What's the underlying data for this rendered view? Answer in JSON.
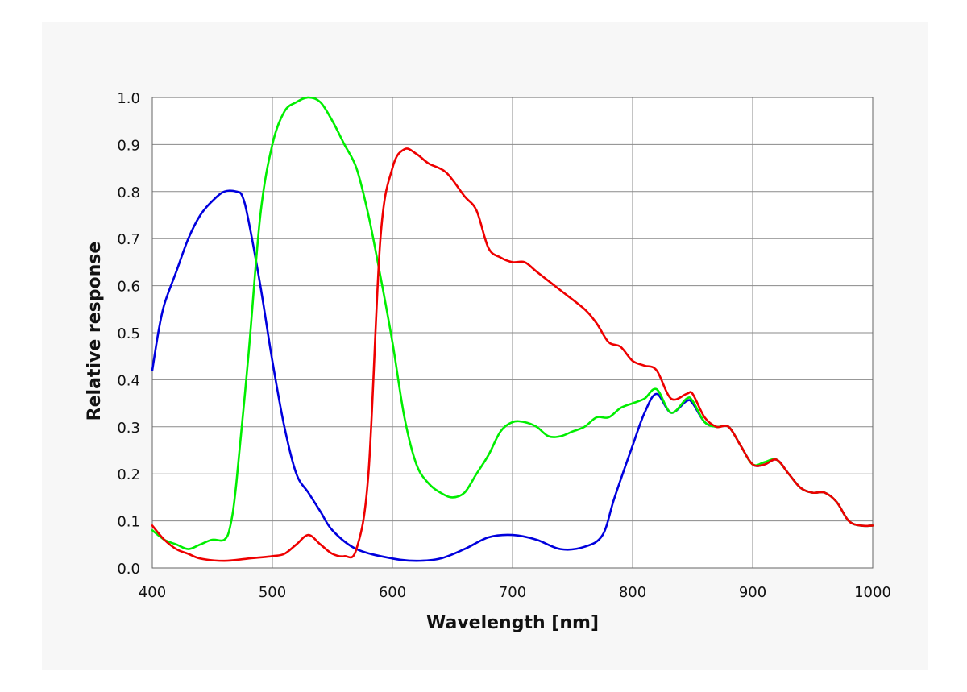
{
  "chart_data": {
    "type": "line",
    "xlabel": "Wavelength [nm]",
    "ylabel": "Relative response",
    "xlim": [
      400,
      1000
    ],
    "ylim": [
      0,
      1
    ],
    "x_ticks": [
      400,
      500,
      600,
      700,
      800,
      900,
      1000
    ],
    "x_tick_labels": [
      "400",
      "500",
      "600",
      "700",
      "800",
      "900",
      "1000"
    ],
    "y_ticks": [
      0,
      0.1,
      0.2,
      0.3,
      0.4,
      0.5,
      0.6,
      0.7,
      0.8,
      0.9,
      1.0
    ],
    "y_tick_labels": [
      "0.0",
      "0.1",
      "0.2",
      "0.3",
      "0.4",
      "0.5",
      "0.6",
      "0.7",
      "0.8",
      "0.9",
      "1.0"
    ],
    "grid": true,
    "series": [
      {
        "color": "#0000dd",
        "points": [
          [
            400,
            0.42
          ],
          [
            405,
            0.5
          ],
          [
            410,
            0.56
          ],
          [
            420,
            0.63
          ],
          [
            430,
            0.7
          ],
          [
            440,
            0.75
          ],
          [
            450,
            0.78
          ],
          [
            460,
            0.8
          ],
          [
            470,
            0.8
          ],
          [
            475,
            0.79
          ],
          [
            480,
            0.74
          ],
          [
            490,
            0.6
          ],
          [
            500,
            0.44
          ],
          [
            510,
            0.3
          ],
          [
            520,
            0.2
          ],
          [
            530,
            0.16
          ],
          [
            540,
            0.12
          ],
          [
            550,
            0.08
          ],
          [
            570,
            0.04
          ],
          [
            600,
            0.02
          ],
          [
            620,
            0.015
          ],
          [
            640,
            0.02
          ],
          [
            660,
            0.04
          ],
          [
            680,
            0.065
          ],
          [
            700,
            0.07
          ],
          [
            720,
            0.06
          ],
          [
            740,
            0.04
          ],
          [
            760,
            0.045
          ],
          [
            775,
            0.07
          ],
          [
            785,
            0.15
          ],
          [
            800,
            0.26
          ],
          [
            810,
            0.33
          ],
          [
            820,
            0.37
          ],
          [
            832,
            0.33
          ],
          [
            845,
            0.355
          ],
          [
            850,
            0.35
          ],
          [
            860,
            0.31
          ],
          [
            870,
            0.3
          ],
          [
            880,
            0.3
          ],
          [
            890,
            0.26
          ],
          [
            900,
            0.22
          ],
          [
            910,
            0.22
          ],
          [
            920,
            0.23
          ],
          [
            930,
            0.2
          ],
          [
            940,
            0.17
          ],
          [
            950,
            0.16
          ],
          [
            960,
            0.16
          ],
          [
            970,
            0.14
          ],
          [
            980,
            0.1
          ],
          [
            990,
            0.09
          ],
          [
            1000,
            0.09
          ]
        ]
      },
      {
        "color": "#00ee00",
        "points": [
          [
            400,
            0.08
          ],
          [
            410,
            0.06
          ],
          [
            420,
            0.05
          ],
          [
            430,
            0.04
          ],
          [
            440,
            0.05
          ],
          [
            450,
            0.06
          ],
          [
            460,
            0.06
          ],
          [
            465,
            0.09
          ],
          [
            470,
            0.18
          ],
          [
            480,
            0.45
          ],
          [
            490,
            0.75
          ],
          [
            500,
            0.9
          ],
          [
            510,
            0.97
          ],
          [
            520,
            0.99
          ],
          [
            530,
            1.0
          ],
          [
            540,
            0.99
          ],
          [
            550,
            0.95
          ],
          [
            560,
            0.9
          ],
          [
            570,
            0.85
          ],
          [
            580,
            0.75
          ],
          [
            590,
            0.62
          ],
          [
            600,
            0.48
          ],
          [
            610,
            0.32
          ],
          [
            620,
            0.22
          ],
          [
            630,
            0.18
          ],
          [
            640,
            0.16
          ],
          [
            650,
            0.15
          ],
          [
            660,
            0.16
          ],
          [
            670,
            0.2
          ],
          [
            680,
            0.24
          ],
          [
            690,
            0.29
          ],
          [
            700,
            0.31
          ],
          [
            710,
            0.31
          ],
          [
            720,
            0.3
          ],
          [
            730,
            0.28
          ],
          [
            740,
            0.28
          ],
          [
            750,
            0.29
          ],
          [
            760,
            0.3
          ],
          [
            770,
            0.32
          ],
          [
            780,
            0.32
          ],
          [
            790,
            0.34
          ],
          [
            800,
            0.35
          ],
          [
            810,
            0.36
          ],
          [
            820,
            0.38
          ],
          [
            832,
            0.33
          ],
          [
            845,
            0.36
          ],
          [
            850,
            0.355
          ],
          [
            860,
            0.31
          ],
          [
            870,
            0.3
          ],
          [
            880,
            0.3
          ],
          [
            890,
            0.26
          ],
          [
            900,
            0.22
          ],
          [
            910,
            0.225
          ],
          [
            920,
            0.23
          ],
          [
            930,
            0.2
          ],
          [
            940,
            0.17
          ],
          [
            950,
            0.16
          ],
          [
            960,
            0.16
          ],
          [
            970,
            0.14
          ],
          [
            980,
            0.1
          ],
          [
            990,
            0.09
          ],
          [
            1000,
            0.09
          ]
        ]
      },
      {
        "color": "#ee0000",
        "points": [
          [
            400,
            0.09
          ],
          [
            410,
            0.06
          ],
          [
            420,
            0.04
          ],
          [
            430,
            0.03
          ],
          [
            440,
            0.02
          ],
          [
            460,
            0.015
          ],
          [
            480,
            0.02
          ],
          [
            500,
            0.025
          ],
          [
            510,
            0.03
          ],
          [
            520,
            0.05
          ],
          [
            530,
            0.07
          ],
          [
            540,
            0.05
          ],
          [
            550,
            0.03
          ],
          [
            560,
            0.025
          ],
          [
            570,
            0.04
          ],
          [
            580,
            0.2
          ],
          [
            590,
            0.7
          ],
          [
            600,
            0.85
          ],
          [
            610,
            0.89
          ],
          [
            620,
            0.88
          ],
          [
            630,
            0.86
          ],
          [
            645,
            0.84
          ],
          [
            660,
            0.79
          ],
          [
            670,
            0.76
          ],
          [
            680,
            0.68
          ],
          [
            690,
            0.66
          ],
          [
            700,
            0.65
          ],
          [
            710,
            0.65
          ],
          [
            720,
            0.63
          ],
          [
            740,
            0.59
          ],
          [
            760,
            0.55
          ],
          [
            770,
            0.52
          ],
          [
            780,
            0.48
          ],
          [
            790,
            0.47
          ],
          [
            800,
            0.44
          ],
          [
            810,
            0.43
          ],
          [
            820,
            0.42
          ],
          [
            832,
            0.36
          ],
          [
            845,
            0.37
          ],
          [
            850,
            0.37
          ],
          [
            860,
            0.32
          ],
          [
            870,
            0.3
          ],
          [
            880,
            0.3
          ],
          [
            890,
            0.26
          ],
          [
            900,
            0.22
          ],
          [
            910,
            0.22
          ],
          [
            920,
            0.23
          ],
          [
            930,
            0.2
          ],
          [
            940,
            0.17
          ],
          [
            950,
            0.16
          ],
          [
            960,
            0.16
          ],
          [
            970,
            0.14
          ],
          [
            980,
            0.1
          ],
          [
            990,
            0.09
          ],
          [
            1000,
            0.09
          ]
        ]
      }
    ]
  }
}
